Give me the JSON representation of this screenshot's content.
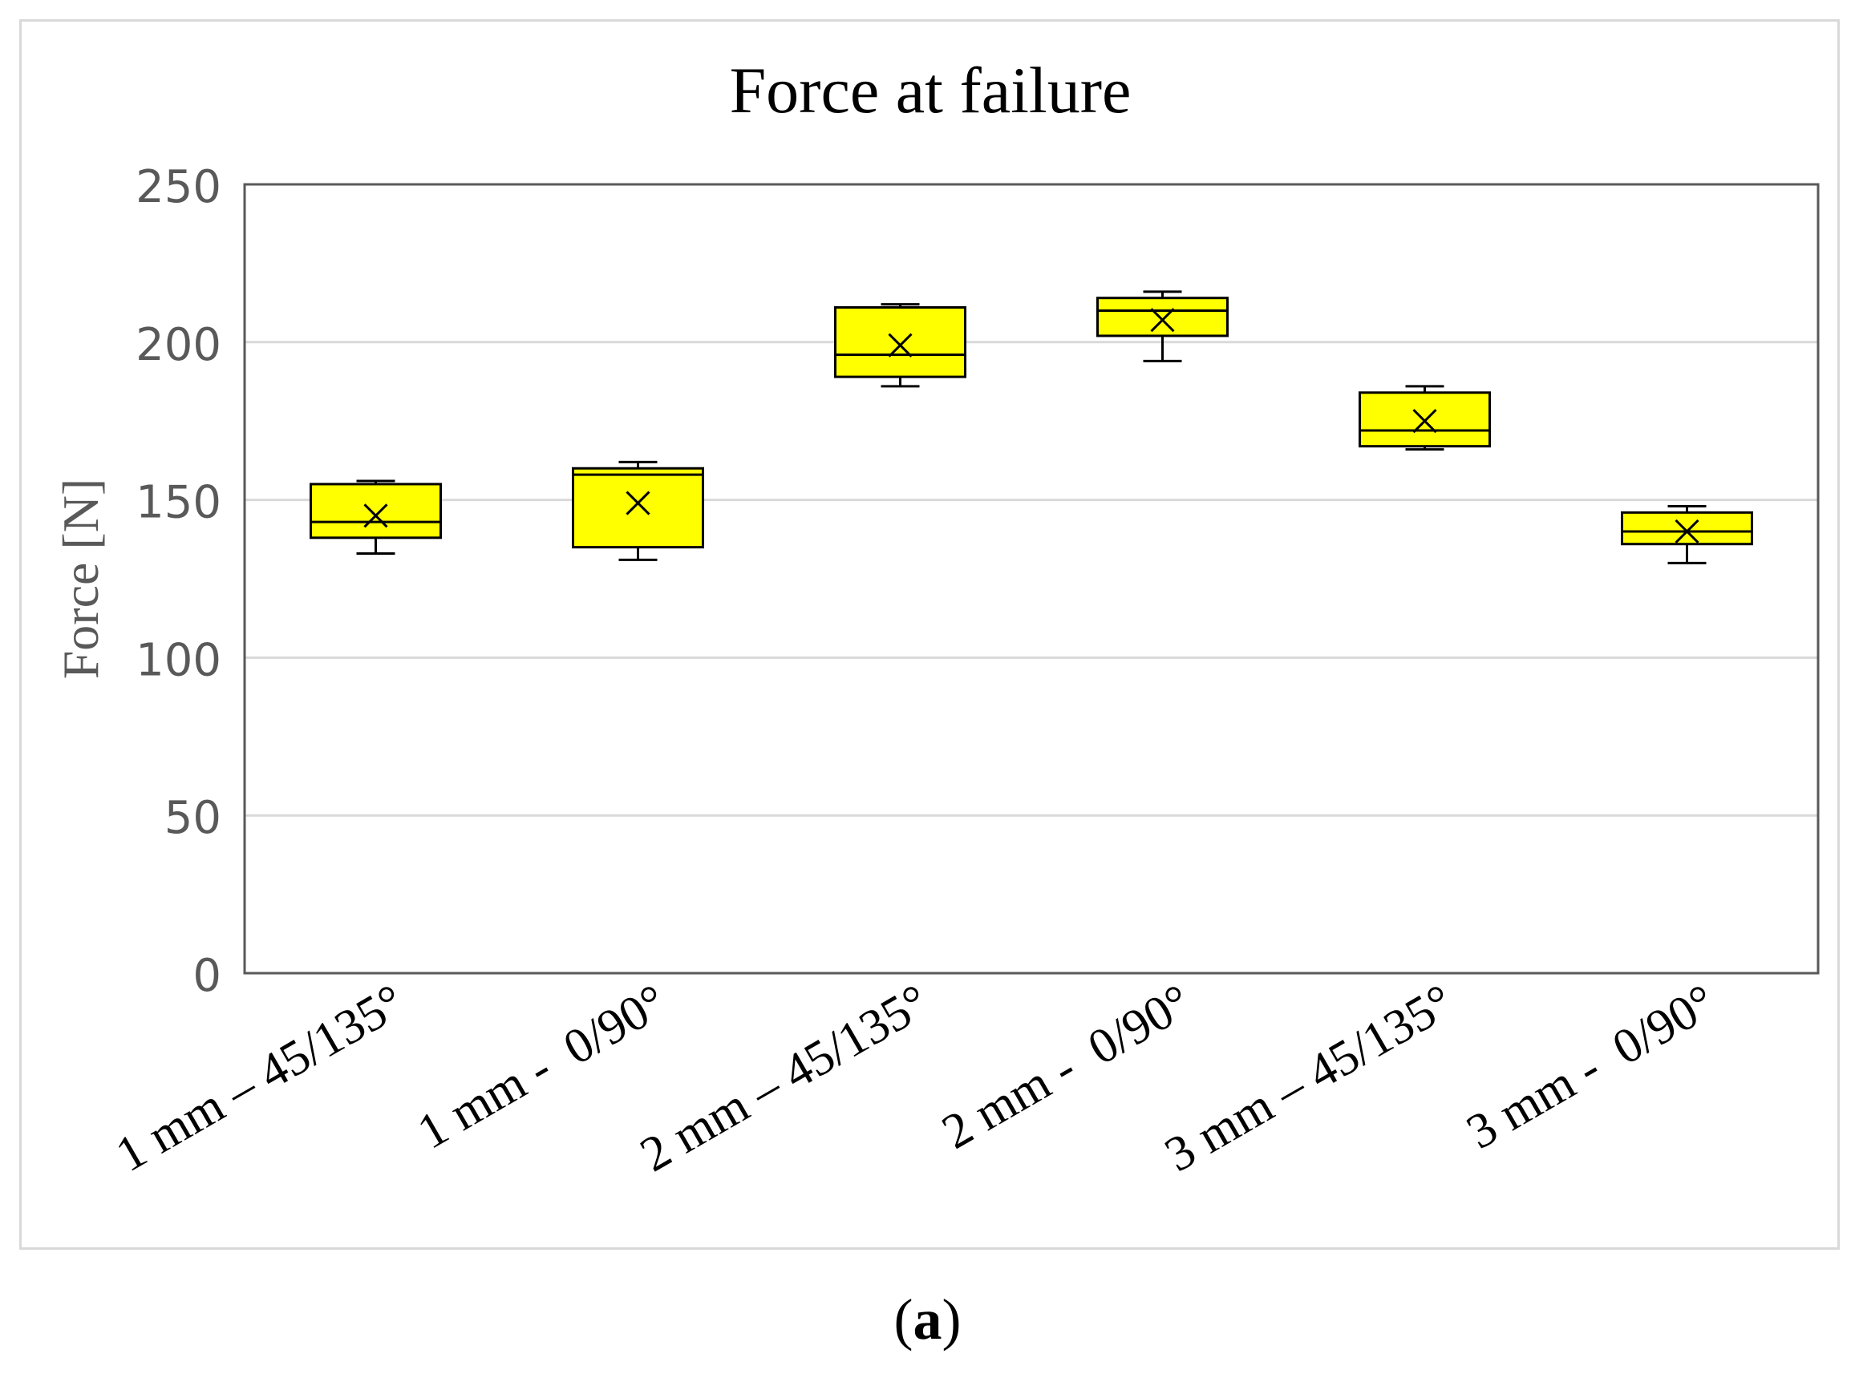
{
  "panel_label": {
    "open": "(",
    "letter": "a",
    "close": ")"
  },
  "colors": {
    "box_fill": "#ffff00",
    "box_stroke": "#000000",
    "grid": "#d9d9d9",
    "axis": "#595959"
  },
  "chart_data": {
    "type": "boxplot",
    "title": "Force at failure",
    "xlabel": "",
    "ylabel": "Force [N]",
    "ylim": [
      0,
      250
    ],
    "yticks": [
      0,
      50,
      100,
      150,
      200,
      250
    ],
    "grid": true,
    "legend": "none",
    "categories": [
      "1 mm – 45/135°",
      "1 mm -  0/90°",
      "2 mm – 45/135°",
      "2 mm -  0/90°",
      "3 mm – 45/135°",
      "3 mm -  0/90°"
    ],
    "boxes": [
      {
        "min": 133,
        "q1": 138,
        "median": 143,
        "q3": 155,
        "max": 156,
        "mean": 145
      },
      {
        "min": 131,
        "q1": 135,
        "median": 158,
        "q3": 160,
        "max": 162,
        "mean": 149
      },
      {
        "min": 186,
        "q1": 189,
        "median": 196,
        "q3": 211,
        "max": 212,
        "mean": 199
      },
      {
        "min": 194,
        "q1": 202,
        "median": 210,
        "q3": 214,
        "max": 216,
        "mean": 207
      },
      {
        "min": 166,
        "q1": 167,
        "median": 172,
        "q3": 184,
        "max": 186,
        "mean": 175
      },
      {
        "min": 130,
        "q1": 136,
        "median": 140,
        "q3": 146,
        "max": 148,
        "mean": 140
      }
    ]
  }
}
